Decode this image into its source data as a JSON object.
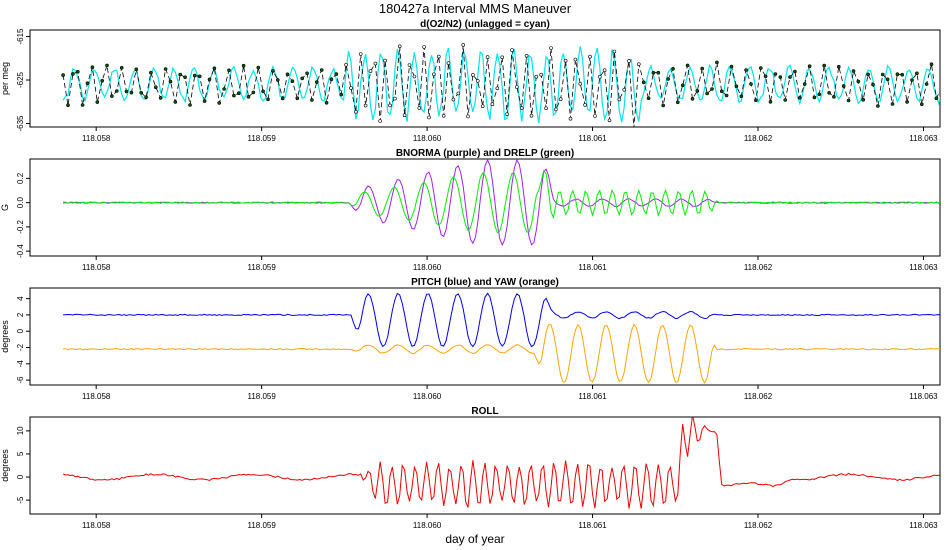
{
  "figure": {
    "title": "180427a   Interval MMS Maneuver",
    "xlabel": "day of year"
  },
  "chart_data": [
    {
      "type": "line",
      "title": "d(O2/N2) (unlagged = cyan)",
      "ylabel": "per meg",
      "xlim": [
        118.0576,
        118.0631
      ],
      "ylim": [
        -635.8,
        -613.5
      ],
      "xticks": [
        118.058,
        118.059,
        118.06,
        118.061,
        118.062,
        118.063
      ],
      "xtick_labels": [
        "118.058",
        "118.059",
        "118.060",
        "118.061",
        "118.062",
        "118.063"
      ],
      "yticks": [
        -615,
        -625,
        -635
      ],
      "ytick_labels": [
        "-615",
        "-625",
        "-635"
      ],
      "series": [
        {
          "name": "lagged",
          "color": "#000000",
          "style": "line-dots"
        },
        {
          "name": "unlagged",
          "color": "#00e5ee"
        }
      ],
      "segments": [
        {
          "x0": 118.0576,
          "x1": 118.0595,
          "base": -626,
          "amp": 3.5,
          "period": 0.00012,
          "noise": 1.5
        },
        {
          "x0": 118.0595,
          "x1": 118.0613,
          "base": -626,
          "amp": 7.5,
          "period": 0.0001,
          "noise": 3
        },
        {
          "x0": 118.0613,
          "x1": 118.0631,
          "base": -626,
          "amp": 3.8,
          "period": 0.00012,
          "noise": 1.5
        }
      ]
    },
    {
      "type": "line",
      "title": "BNORMA (purple) and DRELP (green)",
      "ylabel": "G",
      "xlim": [
        118.0576,
        118.0631
      ],
      "ylim": [
        -0.44,
        0.36
      ],
      "xticks": [
        118.058,
        118.059,
        118.06,
        118.061,
        118.062,
        118.063
      ],
      "xtick_labels": [
        "118.058",
        "118.059",
        "118.060",
        "118.061",
        "118.062",
        "118.063"
      ],
      "yticks": [
        0.2,
        0.0,
        -0.2,
        -0.4
      ],
      "ytick_labels": [
        "0.2",
        "0.0",
        "-0.2",
        "-0.4"
      ],
      "series": [
        {
          "name": "BNORMA",
          "color": "#a020f0"
        },
        {
          "name": "DRELP",
          "color": "#00ee00"
        }
      ],
      "segments": [
        {
          "x0": 118.0596,
          "x1": 118.0607,
          "peak_amplitude": 0.35,
          "period": 0.00018
        },
        {
          "x0": 118.0607,
          "x1": 118.0617,
          "peak_amplitude": 0.1,
          "period": 8e-05
        }
      ]
    },
    {
      "type": "line",
      "title": "PITCH (blue) and YAW (orange)",
      "ylabel": "degrees",
      "xlim": [
        118.0576,
        118.0631
      ],
      "ylim": [
        -6.6,
        5.3
      ],
      "xticks": [
        118.058,
        118.059,
        118.06,
        118.061,
        118.062,
        118.063
      ],
      "xtick_labels": [
        "118.058",
        "118.059",
        "118.060",
        "118.061",
        "118.062",
        "118.063"
      ],
      "yticks": [
        4,
        2,
        0,
        -2,
        -4,
        -6
      ],
      "ytick_labels": [
        "4",
        "2",
        "0",
        "-2",
        "-4",
        "-6"
      ],
      "series": [
        {
          "name": "PITCH",
          "color": "#0000ee",
          "baseline": 2.0
        },
        {
          "name": "YAW",
          "color": "#ffa500",
          "baseline": -2.2
        }
      ],
      "segments": [
        {
          "series": "PITCH",
          "x0": 118.0596,
          "x1": 118.0607,
          "min": -1.9,
          "max": 4.6,
          "period": 0.00018
        },
        {
          "series": "YAW",
          "x0": 118.0607,
          "x1": 118.0617,
          "min": -6.3,
          "max": 0.8,
          "period": 0.00017
        }
      ]
    },
    {
      "type": "line",
      "title": "ROLL",
      "ylabel": "degrees",
      "xlim": [
        118.0576,
        118.0631
      ],
      "ylim": [
        -8,
        13
      ],
      "xticks": [
        118.058,
        118.059,
        118.06,
        118.061,
        118.062,
        118.063
      ],
      "xtick_labels": [
        "118.058",
        "118.059",
        "118.060",
        "118.061",
        "118.062",
        "118.063"
      ],
      "yticks": [
        10,
        5,
        0,
        -5
      ],
      "ytick_labels": [
        "10",
        "5",
        "0",
        "-5"
      ],
      "series": [
        {
          "name": "ROLL",
          "color": "#ee0000"
        }
      ],
      "segments": [
        {
          "x0": 118.0597,
          "x1": 118.0616,
          "min": -7.3,
          "max": 4.0
        },
        {
          "x0": 118.06155,
          "x1": 118.06175,
          "peak": 11.8
        }
      ]
    }
  ]
}
